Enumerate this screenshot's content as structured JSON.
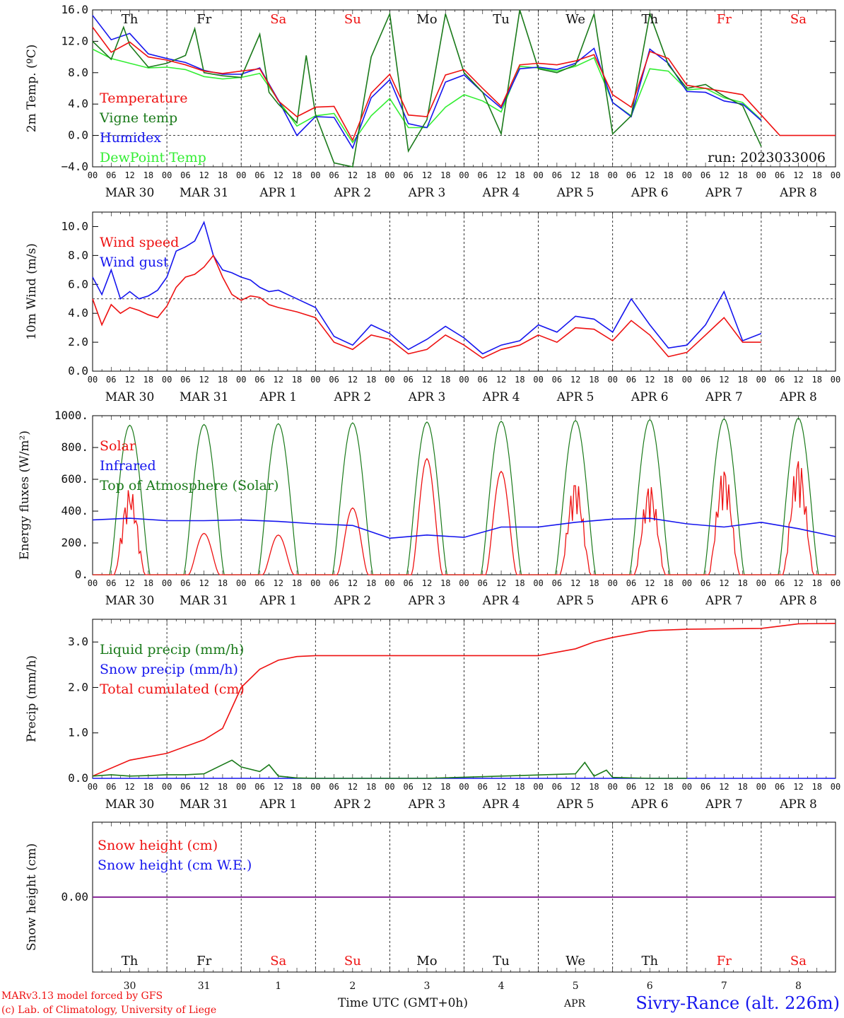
{
  "colors": {
    "red": "#ee1111",
    "darkgreen": "#1a7a1a",
    "blue": "#1515ee",
    "lightgreen": "#33ee33",
    "purple": "#7a1fa2",
    "weekend": "#ee1111",
    "weekday": "#111111"
  },
  "days": {
    "names": [
      "Th",
      "Fr",
      "Sa",
      "Su",
      "Mo",
      "Tu",
      "We",
      "Th",
      "Fr",
      "Sa"
    ],
    "weekend": [
      false,
      false,
      true,
      true,
      false,
      false,
      false,
      false,
      true,
      true
    ],
    "dates": [
      "MAR 30",
      "MAR 31",
      "APR  1",
      "APR  2",
      "APR  3",
      "APR  4",
      "APR  5",
      "APR  6",
      "APR  7",
      "APR  8"
    ],
    "day_numbers": [
      "30",
      "31",
      "1",
      "2",
      "3",
      "4",
      "5",
      "6",
      "7",
      "8"
    ],
    "hour_ticks": [
      "00",
      "06",
      "12",
      "18"
    ],
    "end_tick": "00"
  },
  "footer": {
    "model": "MARv3.13 model forced by GFS",
    "credit": "(c) Lab. of Climatology, University of Liege",
    "axis_title": "Time UTC (GMT+0h)",
    "apr_label": "APR",
    "station": "Sivry-Rance (alt. 226m)"
  },
  "chart_data": [
    {
      "type": "line",
      "ylabel": "2m Temp. (ºC)",
      "ylim": [
        -4,
        16
      ],
      "yticks": [
        "16.0",
        "12.0",
        "8.0",
        "4.0",
        "0.0",
        "−4.0"
      ],
      "ytick_values": [
        16,
        12,
        8,
        4,
        0,
        -4
      ],
      "reference_line": 0,
      "annotation": "run: 2023033006",
      "x_unit": "hours since MAR 30 00 UTC",
      "series": [
        {
          "name": "Temperature",
          "color": "red",
          "x": [
            0,
            6,
            12,
            18,
            24,
            30,
            36,
            42,
            48,
            54,
            60,
            66,
            72,
            78,
            84,
            90,
            96,
            102,
            108,
            114,
            120,
            126,
            132,
            138,
            144,
            150,
            156,
            162,
            168,
            174,
            180,
            186,
            192,
            198,
            204,
            210,
            216,
            222,
            228,
            234,
            240
          ],
          "y": [
            13.8,
            10.6,
            11.9,
            10.0,
            9.6,
            9.0,
            8.2,
            7.9,
            8.2,
            8.5,
            4.4,
            2.4,
            3.6,
            3.7,
            -0.6,
            5.4,
            7.8,
            2.6,
            2.4,
            7.7,
            8.4,
            6.0,
            3.7,
            9.0,
            9.2,
            9.0,
            9.5,
            10.3,
            5.2,
            3.6,
            10.7,
            9.8,
            6.4,
            6.0,
            5.6,
            5.2,
            2.6,
            0,
            0,
            0,
            0
          ]
        },
        {
          "name": "Vigne temp",
          "color": "darkgreen",
          "x": [
            0,
            6,
            10,
            12,
            18,
            24,
            30,
            33,
            36,
            42,
            48,
            54,
            57,
            60,
            66,
            69,
            72,
            78,
            84,
            90,
            96,
            102,
            108,
            114,
            120,
            126,
            132,
            138,
            144,
            150,
            156,
            162,
            168,
            174,
            180,
            186,
            192,
            198,
            204,
            210,
            216
          ],
          "y": [
            12.0,
            9.7,
            13.8,
            11.5,
            8.7,
            9.2,
            10.2,
            13.6,
            8.0,
            7.6,
            7.4,
            12.9,
            5.5,
            4.0,
            1.6,
            10.2,
            2.7,
            -3.5,
            -4.0,
            10.0,
            15.5,
            -2.0,
            2.0,
            15.5,
            8.0,
            5.5,
            0.2,
            16.0,
            8.5,
            8.0,
            9.0,
            15.5,
            0.2,
            2.5,
            15.5,
            9.0,
            6.0,
            6.5,
            5.0,
            3.8,
            -1.4
          ]
        },
        {
          "name": "Humidex",
          "color": "blue",
          "x": [
            0,
            6,
            12,
            18,
            24,
            30,
            36,
            42,
            48,
            54,
            60,
            66,
            72,
            78,
            84,
            90,
            96,
            102,
            108,
            114,
            120,
            126,
            132,
            138,
            144,
            150,
            156,
            162,
            168,
            174,
            180,
            186,
            192,
            198,
            204,
            210,
            216
          ],
          "y": [
            15.3,
            12.2,
            13.0,
            10.4,
            9.8,
            9.3,
            8.3,
            7.8,
            7.8,
            8.6,
            4.5,
            0.0,
            2.4,
            2.3,
            -1.6,
            4.8,
            7.1,
            1.5,
            1.0,
            6.8,
            7.7,
            5.5,
            3.5,
            8.5,
            8.7,
            8.4,
            9.2,
            11.1,
            4.2,
            2.4,
            11.0,
            9.2,
            5.6,
            5.5,
            4.4,
            4.0,
            1.9
          ]
        },
        {
          "name": "DewPoint Temp",
          "color": "lightgreen",
          "x": [
            0,
            6,
            12,
            18,
            24,
            30,
            36,
            42,
            48,
            54,
            60,
            66,
            72,
            78,
            84,
            90,
            96,
            102,
            108,
            114,
            120,
            126,
            132,
            138,
            144,
            150,
            156,
            162,
            168,
            174,
            180,
            186,
            192,
            198,
            204,
            210,
            216
          ],
          "y": [
            11.0,
            9.8,
            9.2,
            8.6,
            8.7,
            8.4,
            7.5,
            7.2,
            7.4,
            7.9,
            4.5,
            1.2,
            2.5,
            2.8,
            -0.9,
            2.5,
            4.7,
            1.0,
            1.0,
            3.6,
            5.2,
            4.4,
            3.0,
            8.8,
            8.6,
            8.2,
            8.8,
            9.9,
            4.2,
            2.5,
            8.5,
            8.2,
            5.8,
            6.0,
            4.8,
            4.2,
            2.0
          ]
        }
      ]
    },
    {
      "type": "line",
      "ylabel": "10m Wind (m/s)",
      "ylim": [
        0,
        11
      ],
      "yticks": [
        "10.0",
        "8.0",
        "6.0",
        "4.0",
        "2.0",
        "0.0"
      ],
      "ytick_values": [
        10,
        8,
        6,
        4,
        2,
        0
      ],
      "reference_line": 5,
      "x_unit": "hours since MAR 30 00 UTC",
      "series": [
        {
          "name": "Wind speed",
          "color": "red",
          "x": [
            0,
            3,
            6,
            9,
            12,
            15,
            18,
            21,
            24,
            27,
            30,
            33,
            36,
            39,
            42,
            45,
            48,
            51,
            54,
            57,
            60,
            66,
            72,
            78,
            84,
            90,
            96,
            102,
            108,
            114,
            120,
            126,
            132,
            138,
            144,
            150,
            156,
            162,
            168,
            174,
            180,
            186,
            192,
            198,
            204,
            210,
            216
          ],
          "y": [
            5.0,
            3.2,
            4.6,
            4.0,
            4.4,
            4.2,
            3.9,
            3.7,
            4.5,
            5.8,
            6.5,
            6.7,
            7.2,
            8.0,
            6.5,
            5.3,
            4.9,
            5.2,
            5.1,
            4.6,
            4.4,
            4.1,
            3.7,
            2.0,
            1.5,
            2.5,
            2.2,
            1.2,
            1.5,
            2.5,
            1.8,
            0.9,
            1.5,
            1.8,
            2.5,
            2.0,
            3.0,
            2.9,
            2.1,
            3.5,
            2.5,
            1.0,
            1.3,
            2.5,
            3.7,
            2.0,
            2.0
          ]
        },
        {
          "name": "Wind gust",
          "color": "blue",
          "x": [
            0,
            3,
            6,
            9,
            12,
            15,
            18,
            21,
            24,
            27,
            30,
            33,
            36,
            39,
            42,
            45,
            48,
            51,
            54,
            57,
            60,
            66,
            72,
            78,
            84,
            90,
            96,
            102,
            108,
            114,
            120,
            126,
            132,
            138,
            144,
            150,
            156,
            162,
            168,
            174,
            180,
            186,
            192,
            198,
            204,
            210,
            216
          ],
          "y": [
            6.5,
            5.3,
            7.0,
            5.0,
            5.5,
            5.0,
            5.2,
            5.6,
            6.5,
            8.3,
            8.6,
            9.0,
            10.3,
            8.0,
            7.0,
            6.8,
            6.5,
            6.3,
            5.8,
            5.5,
            5.6,
            5.0,
            4.4,
            2.4,
            1.8,
            3.2,
            2.6,
            1.5,
            2.2,
            3.1,
            2.3,
            1.2,
            1.8,
            2.1,
            3.2,
            2.7,
            3.8,
            3.6,
            2.7,
            5.0,
            3.2,
            1.6,
            1.8,
            3.2,
            5.5,
            2.1,
            2.6
          ]
        }
      ]
    },
    {
      "type": "line",
      "ylabel": "Energy fluxes (W/m²)",
      "ylim": [
        0,
        1000
      ],
      "yticks": [
        "1000.",
        "800.",
        "600.",
        "400.",
        "200.",
        "0."
      ],
      "ytick_values": [
        1000,
        800,
        600,
        400,
        200,
        0
      ],
      "x_unit": "hours since MAR 30 00 UTC",
      "series": [
        {
          "name": "Solar",
          "color": "red",
          "daily_peak": [
            550,
            260,
            250,
            420,
            730,
            650,
            610,
            580,
            690,
            750
          ]
        },
        {
          "name": "Infrared",
          "color": "blue",
          "x": [
            0,
            12,
            24,
            36,
            48,
            60,
            72,
            84,
            96,
            108,
            120,
            132,
            144,
            156,
            168,
            180,
            192,
            204,
            216,
            228,
            240
          ],
          "y": [
            345,
            355,
            340,
            340,
            345,
            335,
            320,
            310,
            230,
            250,
            235,
            300,
            300,
            330,
            350,
            355,
            320,
            300,
            330,
            290,
            240
          ]
        },
        {
          "name": "Top of Atmosphere (Solar)",
          "color": "darkgreen",
          "daily_peak": [
            940,
            945,
            950,
            955,
            960,
            965,
            970,
            975,
            980,
            985
          ]
        }
      ]
    },
    {
      "type": "line",
      "ylabel": "Precip (mm/h)",
      "ylim": [
        0,
        3.5
      ],
      "yticks": [
        "3.0",
        "2.0",
        "1.0",
        "0.0"
      ],
      "ytick_values": [
        3,
        2,
        1,
        0
      ],
      "x_unit": "hours since MAR 30 00 UTC",
      "series": [
        {
          "name": "Liquid precip (mm/h)",
          "color": "darkgreen",
          "x": [
            0,
            6,
            12,
            18,
            24,
            30,
            36,
            42,
            45,
            48,
            54,
            57,
            60,
            66,
            72,
            108,
            156,
            159,
            162,
            166,
            168,
            180,
            192
          ],
          "y": [
            0.05,
            0.08,
            0.05,
            0.06,
            0.08,
            0.08,
            0.1,
            0.3,
            0.4,
            0.25,
            0.15,
            0.3,
            0.05,
            0.01,
            0,
            0,
            0.1,
            0.35,
            0.05,
            0.18,
            0.02,
            0,
            0
          ]
        },
        {
          "name": "Snow precip (mm/h)",
          "color": "blue",
          "x": [
            0,
            240
          ],
          "y": [
            0,
            0
          ]
        },
        {
          "name": "Total cumulated (cm)",
          "color": "red",
          "x": [
            0,
            12,
            24,
            36,
            42,
            48,
            54,
            60,
            66,
            72,
            84,
            96,
            108,
            120,
            144,
            156,
            162,
            168,
            180,
            192,
            216,
            228,
            240
          ],
          "y": [
            0.05,
            0.4,
            0.55,
            0.85,
            1.1,
            2.0,
            2.4,
            2.6,
            2.68,
            2.7,
            2.7,
            2.7,
            2.7,
            2.7,
            2.7,
            2.85,
            3.0,
            3.1,
            3.25,
            3.28,
            3.3,
            3.4,
            3.41
          ]
        }
      ]
    },
    {
      "type": "line",
      "ylabel": "Snow height (cm)",
      "ylim": [
        -1,
        1
      ],
      "yticks": [
        "0.00"
      ],
      "ytick_values": [
        0
      ],
      "x_unit": "hours since MAR 30 00 UTC",
      "series": [
        {
          "name": "Snow height (cm)",
          "color": "red",
          "x": [
            0,
            240
          ],
          "y": [
            0,
            0
          ]
        },
        {
          "name": "Snow height (cm W.E.)",
          "color": "blue",
          "x": [
            0,
            240
          ],
          "y": [
            0,
            0
          ]
        }
      ]
    }
  ]
}
